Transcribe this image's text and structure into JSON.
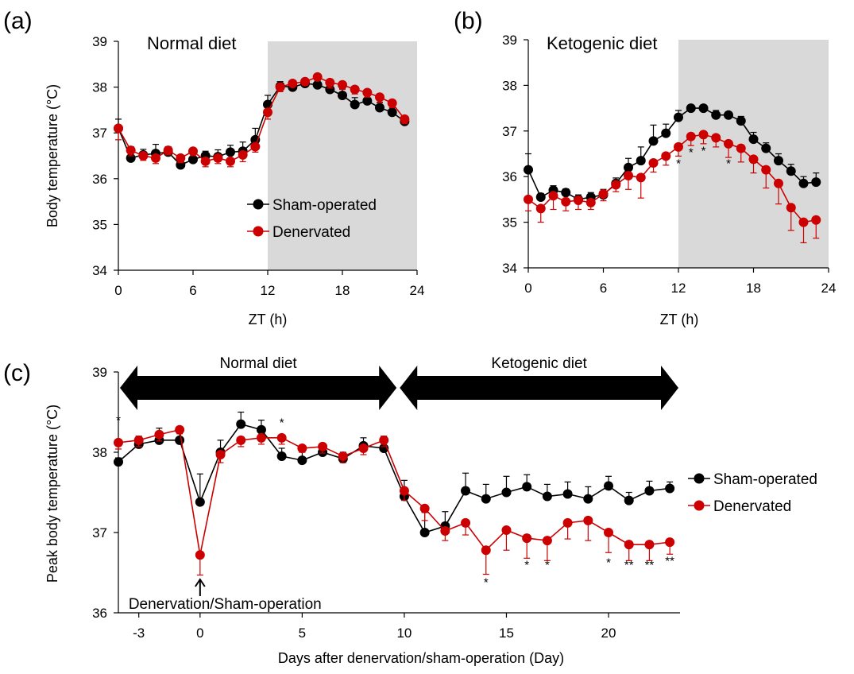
{
  "colors": {
    "sham": "#000000",
    "denervated": "#cc0000",
    "dark_phase": "#d9d9d9"
  },
  "chart_data": [
    {
      "id": "a",
      "type": "line",
      "panel_label": "(a)",
      "title": "Normal diet",
      "xlabel": "ZT (h)",
      "ylabel": "Body temperature (°C)",
      "xlim": [
        0,
        24
      ],
      "ylim": [
        34,
        39
      ],
      "xticks": [
        0,
        6,
        12,
        18,
        24
      ],
      "yticks": [
        34,
        35,
        36,
        37,
        38,
        39
      ],
      "shaded_region": [
        12,
        24
      ],
      "legend": {
        "placement": "center-right",
        "entries": [
          "Sham-operated",
          "Denervated"
        ]
      },
      "x": [
        0,
        1,
        2,
        3,
        4,
        5,
        6,
        7,
        8,
        9,
        10,
        11,
        12,
        13,
        14,
        15,
        16,
        17,
        18,
        19,
        20,
        21,
        22,
        23
      ],
      "series": [
        {
          "name": "Sham-operated",
          "color_key": "sham",
          "values": [
            37.1,
            36.45,
            36.52,
            36.55,
            36.58,
            36.3,
            36.42,
            36.5,
            36.48,
            36.58,
            36.6,
            36.85,
            37.62,
            38.02,
            38.0,
            38.08,
            38.05,
            37.95,
            37.82,
            37.62,
            37.7,
            37.55,
            37.45,
            37.25
          ],
          "errors": [
            0.2,
            0.25,
            0.12,
            0.2,
            0.12,
            0.12,
            0.08,
            0.1,
            0.15,
            0.15,
            0.2,
            0.25,
            0.2,
            0.1,
            0.05,
            0.05,
            0.1,
            0.12,
            0.15,
            0.15,
            0.12,
            0.12,
            0.15,
            0.1
          ]
        },
        {
          "name": "Denervated",
          "color_key": "denervated",
          "values": [
            37.1,
            36.62,
            36.5,
            36.45,
            36.62,
            36.45,
            36.6,
            36.38,
            36.45,
            36.38,
            36.52,
            36.7,
            37.45,
            38.0,
            38.08,
            38.12,
            38.22,
            38.1,
            38.05,
            37.95,
            37.88,
            37.78,
            37.65,
            37.3
          ],
          "errors": [
            0.25,
            0.12,
            0.1,
            0.12,
            0.1,
            0.1,
            0.1,
            0.12,
            0.12,
            0.12,
            0.15,
            0.12,
            0.15,
            0.1,
            0.06,
            0.08,
            0.06,
            0.12,
            0.1,
            0.1,
            0.1,
            0.12,
            0.1,
            0.1
          ]
        }
      ],
      "annotations": []
    },
    {
      "id": "b",
      "type": "line",
      "panel_label": "(b)",
      "title": "Ketogenic diet",
      "xlabel": "ZT (h)",
      "ylabel": "",
      "xlim": [
        0,
        24
      ],
      "ylim": [
        34,
        39
      ],
      "xticks": [
        0,
        6,
        12,
        18,
        24
      ],
      "yticks": [
        34,
        35,
        36,
        37,
        38,
        39
      ],
      "shaded_region": [
        12,
        24
      ],
      "legend": null,
      "x": [
        0,
        1,
        2,
        3,
        4,
        5,
        6,
        7,
        8,
        9,
        10,
        11,
        12,
        13,
        14,
        15,
        16,
        17,
        18,
        19,
        20,
        21,
        22,
        23
      ],
      "series": [
        {
          "name": "Sham-operated",
          "color_key": "sham",
          "values": [
            36.15,
            35.55,
            35.7,
            35.65,
            35.5,
            35.55,
            35.6,
            35.85,
            36.2,
            36.35,
            36.78,
            36.95,
            37.3,
            37.5,
            37.5,
            37.35,
            37.35,
            37.22,
            36.82,
            36.62,
            36.35,
            36.12,
            35.85,
            35.88
          ],
          "errors": [
            0.35,
            0.08,
            0.1,
            0.08,
            0.1,
            0.1,
            0.12,
            0.12,
            0.2,
            0.3,
            0.35,
            0.2,
            0.15,
            0.06,
            0.05,
            0.1,
            0.06,
            0.1,
            0.15,
            0.12,
            0.15,
            0.15,
            0.15,
            0.2
          ]
        },
        {
          "name": "Denervated",
          "color_key": "denervated",
          "values": [
            35.5,
            35.3,
            35.58,
            35.45,
            35.48,
            35.43,
            35.62,
            35.82,
            36.02,
            35.98,
            36.3,
            36.45,
            36.65,
            36.88,
            36.92,
            36.85,
            36.72,
            36.62,
            36.38,
            36.15,
            35.85,
            35.32,
            35.0,
            35.05
          ],
          "errors": [
            0.25,
            0.3,
            0.3,
            0.2,
            0.2,
            0.15,
            0.15,
            0.15,
            0.3,
            0.45,
            0.2,
            0.2,
            0.2,
            0.2,
            0.2,
            0.2,
            0.3,
            0.3,
            0.3,
            0.4,
            0.45,
            0.5,
            0.45,
            0.4
          ]
        }
      ],
      "annotations": [
        {
          "x": 12,
          "y": 36.2,
          "text": "*"
        },
        {
          "x": 13,
          "y": 36.45,
          "text": "*"
        },
        {
          "x": 14,
          "y": 36.48,
          "text": "*"
        },
        {
          "x": 16,
          "y": 36.2,
          "text": "*"
        }
      ]
    },
    {
      "id": "c",
      "type": "line",
      "panel_label": "(c)",
      "title": "",
      "xlabel": "Days after denervation/sham-operation (Day)",
      "ylabel": "Peak body temperature (°C)",
      "xlim": [
        -4,
        23.5
      ],
      "ylim": [
        36,
        39
      ],
      "xticks": [
        -3,
        0,
        5,
        10,
        15,
        20
      ],
      "yticks": [
        36,
        37,
        38,
        39
      ],
      "legend": {
        "placement": "right",
        "entries": [
          "Sham-operated",
          "Denervated"
        ]
      },
      "phases": [
        {
          "label": "Normal diet",
          "from": -4,
          "to": 9.7
        },
        {
          "label": "Ketogenic diet",
          "from": 9.7,
          "to": 23.5
        }
      ],
      "event": {
        "x": 0,
        "label": "Denervation/Sham-operation"
      },
      "x": [
        -4,
        -3,
        -2,
        -1,
        0,
        1,
        2,
        3,
        4,
        5,
        6,
        7,
        8,
        9,
        10,
        11,
        12,
        13,
        14,
        15,
        16,
        17,
        18,
        19,
        20,
        21,
        22,
        23
      ],
      "series": [
        {
          "name": "Sham-operated",
          "color_key": "sham",
          "values": [
            37.88,
            38.1,
            38.15,
            38.15,
            37.38,
            38.0,
            38.35,
            38.28,
            37.95,
            37.9,
            38.0,
            37.92,
            38.08,
            38.05,
            37.45,
            37.0,
            37.08,
            37.52,
            37.42,
            37.5,
            37.57,
            37.45,
            37.48,
            37.42,
            37.58,
            37.4,
            37.52,
            37.55
          ],
          "errors": [
            0.05,
            0.1,
            0.15,
            0.15,
            0.35,
            0.15,
            0.15,
            0.12,
            0.1,
            0.1,
            0.1,
            0.08,
            0.1,
            0.15,
            0.2,
            0.25,
            0.18,
            0.22,
            0.18,
            0.2,
            0.15,
            0.15,
            0.15,
            0.15,
            0.12,
            0.1,
            0.12,
            0.08
          ]
        },
        {
          "name": "Denervated",
          "color_key": "denervated",
          "values": [
            38.12,
            38.15,
            38.22,
            38.28,
            36.72,
            37.97,
            38.15,
            38.18,
            38.18,
            38.05,
            38.07,
            37.95,
            38.05,
            38.15,
            37.52,
            37.3,
            37.02,
            37.12,
            36.78,
            37.03,
            36.93,
            36.9,
            37.12,
            37.15,
            37.0,
            36.85,
            36.85,
            36.88
          ],
          "errors": [
            0.08,
            0.08,
            0.08,
            0.05,
            0.25,
            0.1,
            0.08,
            0.08,
            0.08,
            0.05,
            0.08,
            0.08,
            0.08,
            0.08,
            0.12,
            0.15,
            0.12,
            0.15,
            0.3,
            0.25,
            0.25,
            0.25,
            0.2,
            0.25,
            0.25,
            0.2,
            0.2,
            0.15
          ]
        }
      ],
      "annotations": [
        {
          "x": -4,
          "y": 38.35,
          "text": "*"
        },
        {
          "x": 4,
          "y": 38.32,
          "text": "*"
        },
        {
          "x": 14,
          "y": 36.33,
          "text": "*"
        },
        {
          "x": 16,
          "y": 36.55,
          "text": "*"
        },
        {
          "x": 17,
          "y": 36.55,
          "text": "*"
        },
        {
          "x": 20,
          "y": 36.58,
          "text": "*"
        },
        {
          "x": 21,
          "y": 36.55,
          "text": "**"
        },
        {
          "x": 22,
          "y": 36.55,
          "text": "**"
        },
        {
          "x": 23,
          "y": 36.6,
          "text": "**"
        }
      ]
    }
  ]
}
